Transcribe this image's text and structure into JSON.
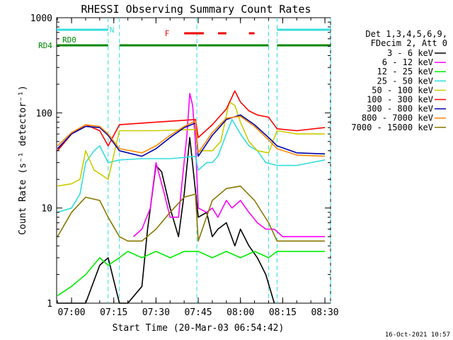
{
  "chart_data": {
    "type": "line",
    "title": "RHESSI Observing Summary Count Rates",
    "xlabel": "Start Time (20-Mar-03 06:54:42)",
    "ylabel": "Count Rate (s⁻¹ detector⁻¹)",
    "y_scale": "log",
    "ylim": [
      1,
      1000
    ],
    "xlim": [
      "06:54:42",
      "08:32:00"
    ],
    "x_ticks": [
      "07:00",
      "07:15",
      "07:30",
      "07:45",
      "08:00",
      "08:15",
      "08:30"
    ],
    "y_ticks": [
      "1",
      "10",
      "100",
      "1000"
    ],
    "legend_title": [
      "Det 1,3,4,5,6,9,",
      "FDecim 2, Att 0"
    ],
    "legend_position": "right",
    "timestamp": "16-Oct-2021 10:57",
    "flags": [
      {
        "label": "N",
        "color": "#33dddd",
        "intervals": [
          [
            "06:54:42",
            "07:13:00"
          ],
          [
            "08:13:00",
            "08:32:00"
          ]
        ]
      },
      {
        "label": "F",
        "color": "#ee0000",
        "intervals": [
          [
            "07:40:00",
            "07:47:00"
          ],
          [
            "07:52:00",
            "07:55:00"
          ],
          [
            "08:03:00",
            "08:05:00"
          ]
        ]
      },
      {
        "label": "RD0",
        "color": "#008800",
        "intervals": []
      },
      {
        "label": "RD4",
        "color": "#008800",
        "intervals": [
          [
            "06:54:42",
            "07:13:00"
          ],
          [
            "07:17:00",
            "07:44:30"
          ],
          [
            "07:45:00",
            "08:10:00"
          ],
          [
            "08:13:00",
            "08:32:00"
          ]
        ]
      }
    ],
    "gap_markers": [
      "07:13:00",
      "07:17:00",
      "07:44:30",
      "08:10:00",
      "08:13:00",
      "08:32:00"
    ],
    "series": [
      {
        "name": "3 - 6 keV",
        "color": "#000000",
        "x": [
          "06:55",
          "07:00",
          "07:05",
          "07:10",
          "07:13",
          "07:17",
          "07:20",
          "07:25",
          "07:27",
          "07:30",
          "07:32",
          "07:35",
          "07:38",
          "07:40",
          "07:42",
          "07:45",
          "07:48",
          "07:50",
          "07:52",
          "07:55",
          "07:58",
          "08:00",
          "08:03",
          "08:06",
          "08:09",
          "08:12"
        ],
        "y": [
          1,
          1,
          1,
          2.5,
          3,
          1,
          1,
          1.5,
          6,
          28,
          24,
          10,
          5,
          14,
          55,
          8,
          9,
          5,
          6,
          7,
          4,
          6,
          4,
          3,
          2,
          1
        ]
      },
      {
        "name": "6 - 12 keV",
        "color": "#ff00ff",
        "x": [
          "07:22",
          "07:25",
          "07:28",
          "07:30",
          "07:33",
          "07:35",
          "07:38",
          "07:41",
          "07:42",
          "07:43",
          "07:44",
          "07:45",
          "07:48",
          "07:50",
          "07:52",
          "07:55",
          "07:57",
          "08:00",
          "08:03",
          "08:06",
          "08:09",
          "08:12",
          "08:15",
          "08:20",
          "08:25",
          "08:30"
        ],
        "y": [
          5,
          6,
          10,
          30,
          14,
          8,
          8,
          60,
          160,
          120,
          50,
          10,
          9,
          10,
          8,
          12,
          10,
          12,
          9,
          7,
          6,
          6,
          5,
          5,
          5,
          5
        ]
      },
      {
        "name": "12 - 25 keV",
        "color": "#00ee00",
        "x": [
          "06:55",
          "07:00",
          "07:05",
          "07:10",
          "07:13",
          "07:17",
          "07:20",
          "07:25",
          "07:30",
          "07:35",
          "07:40",
          "07:45",
          "07:50",
          "07:55",
          "08:00",
          "08:05",
          "08:10",
          "08:13",
          "08:20",
          "08:25",
          "08:30"
        ],
        "y": [
          1.2,
          1.5,
          2,
          3,
          2.5,
          3,
          3.5,
          3,
          3.5,
          3,
          3.5,
          3.5,
          3,
          3.5,
          3,
          3.5,
          3,
          3.5,
          3.5,
          3.5,
          3.5
        ]
      },
      {
        "name": "25 - 50 keV",
        "color": "#33dddd",
        "x": [
          "06:55",
          "07:00",
          "07:03",
          "07:05",
          "07:08",
          "07:10",
          "07:13",
          "07:17",
          "07:25",
          "07:30",
          "07:35",
          "07:40",
          "07:44",
          "07:45",
          "07:48",
          "07:50",
          "07:52",
          "07:55",
          "07:57",
          "08:00",
          "08:03",
          "08:06",
          "08:09",
          "08:13",
          "08:20",
          "08:25",
          "08:30"
        ],
        "y": [
          9,
          10,
          14,
          30,
          40,
          45,
          30,
          32,
          33,
          33,
          33,
          34,
          35,
          25,
          30,
          30,
          35,
          60,
          85,
          60,
          45,
          40,
          30,
          28,
          28,
          30,
          32
        ]
      },
      {
        "name": "50 - 100 keV",
        "color": "#cccc00",
        "x": [
          "06:55",
          "07:00",
          "07:03",
          "07:05",
          "07:08",
          "07:10",
          "07:13",
          "07:17",
          "07:30",
          "07:44",
          "07:45",
          "07:50",
          "07:53",
          "07:56",
          "07:58",
          "08:00",
          "08:03",
          "08:06",
          "08:10",
          "08:13",
          "08:20",
          "08:30"
        ],
        "y": [
          17,
          18,
          20,
          40,
          25,
          23,
          20,
          65,
          65,
          67,
          40,
          40,
          50,
          130,
          120,
          80,
          50,
          40,
          38,
          65,
          60,
          60
        ]
      },
      {
        "name": "100 - 300 keV",
        "color": "#ff0000",
        "x": [
          "06:55",
          "07:00",
          "07:05",
          "07:10",
          "07:13",
          "07:17",
          "07:30",
          "07:44",
          "07:45",
          "07:50",
          "07:55",
          "07:58",
          "08:00",
          "08:03",
          "08:06",
          "08:10",
          "08:13",
          "08:20",
          "08:30"
        ],
        "y": [
          40,
          60,
          75,
          65,
          45,
          75,
          80,
          85,
          55,
          75,
          110,
          170,
          130,
          105,
          95,
          90,
          68,
          65,
          70
        ]
      },
      {
        "name": "300 - 800 keV",
        "color": "#0000aa",
        "x": [
          "06:55",
          "07:00",
          "07:05",
          "07:10",
          "07:13",
          "07:17",
          "07:25",
          "07:30",
          "07:35",
          "07:40",
          "07:44",
          "07:45",
          "07:50",
          "07:55",
          "08:00",
          "08:05",
          "08:10",
          "08:13",
          "08:20",
          "08:30"
        ],
        "y": [
          42,
          60,
          72,
          70,
          58,
          40,
          35,
          42,
          55,
          70,
          78,
          35,
          58,
          85,
          95,
          75,
          55,
          45,
          38,
          37
        ]
      },
      {
        "name": "800 - 7000 keV",
        "color": "#ff8800",
        "x": [
          "06:55",
          "07:00",
          "07:05",
          "07:10",
          "07:13",
          "07:17",
          "07:25",
          "07:30",
          "07:35",
          "07:40",
          "07:44",
          "07:45",
          "07:50",
          "07:55",
          "08:00",
          "08:05",
          "08:10",
          "08:13",
          "08:20",
          "08:30"
        ],
        "y": [
          45,
          62,
          75,
          72,
          60,
          42,
          38,
          45,
          58,
          72,
          82,
          38,
          62,
          88,
          92,
          72,
          52,
          42,
          36,
          35
        ]
      },
      {
        "name": "7000 - 15000 keV",
        "color": "#887700",
        "x": [
          "06:55",
          "07:00",
          "07:05",
          "07:10",
          "07:13",
          "07:17",
          "07:20",
          "07:25",
          "07:30",
          "07:35",
          "07:40",
          "07:44",
          "07:45",
          "07:50",
          "07:55",
          "08:00",
          "08:05",
          "08:10",
          "08:13",
          "08:20",
          "08:30"
        ],
        "y": [
          5,
          9,
          13,
          12,
          8,
          5,
          4.5,
          4.5,
          6,
          9,
          13,
          14,
          4.5,
          12,
          16,
          17,
          12,
          7,
          4.5,
          4.5,
          4.5
        ]
      }
    ]
  }
}
